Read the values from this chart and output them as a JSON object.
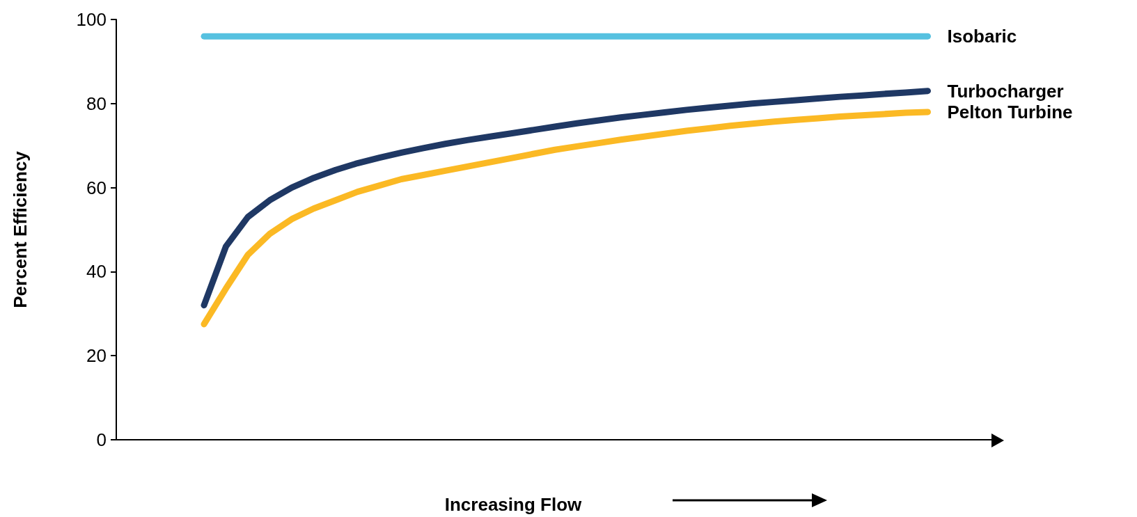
{
  "chart_data": {
    "type": "line",
    "xlabel": "Increasing Flow",
    "ylabel": "Percent Efficiency",
    "categories": [
      null,
      null,
      null,
      null,
      null,
      null,
      null,
      null,
      null,
      null,
      null,
      null,
      null,
      null,
      null,
      null,
      null,
      null,
      null,
      null,
      null,
      null,
      null,
      null,
      null,
      null,
      null,
      null,
      null,
      null,
      null,
      null,
      null,
      null,
      null,
      null,
      null,
      null,
      null,
      null,
      null
    ],
    "series": [
      {
        "name": "Isobaric",
        "color": "#56c1e0",
        "values": [
          null,
          null,
          null,
          null,
          96,
          96,
          96,
          96,
          96,
          96,
          96,
          96,
          96,
          96,
          96,
          96,
          96,
          96,
          96,
          96,
          96,
          96,
          96,
          96,
          96,
          96,
          96,
          96,
          96,
          96,
          96,
          96,
          96,
          96,
          96,
          96,
          96,
          96,
          null,
          null,
          null
        ]
      },
      {
        "name": "Turbocharger",
        "color": "#1f3864",
        "values": [
          null,
          null,
          null,
          null,
          32,
          46,
          53,
          57,
          60,
          62.3,
          64.2,
          65.8,
          67.1,
          68.3,
          69.4,
          70.4,
          71.3,
          72.1,
          72.9,
          73.7,
          74.5,
          75.3,
          76,
          76.7,
          77.3,
          77.9,
          78.5,
          79,
          79.5,
          80,
          80.4,
          80.8,
          81.2,
          81.6,
          81.9,
          82.3,
          82.6,
          83,
          null,
          null,
          null
        ]
      },
      {
        "name": "Pelton Turbine",
        "color": "#fbb924",
        "values": [
          null,
          null,
          null,
          null,
          27.5,
          36,
          44,
          49,
          52.5,
          55,
          57,
          59,
          60.5,
          62,
          63,
          64,
          65,
          66,
          67,
          68,
          69,
          69.8,
          70.6,
          71.4,
          72.1,
          72.8,
          73.5,
          74.1,
          74.7,
          75.2,
          75.7,
          76.1,
          76.5,
          76.9,
          77.2,
          77.5,
          77.8,
          78,
          null,
          null,
          null
        ]
      }
    ],
    "ylim": [
      0,
      100
    ],
    "yticks": [
      0,
      20,
      40,
      60,
      80,
      100
    ],
    "grid": false,
    "legend": false,
    "marker": "none",
    "line_style": "solid"
  }
}
